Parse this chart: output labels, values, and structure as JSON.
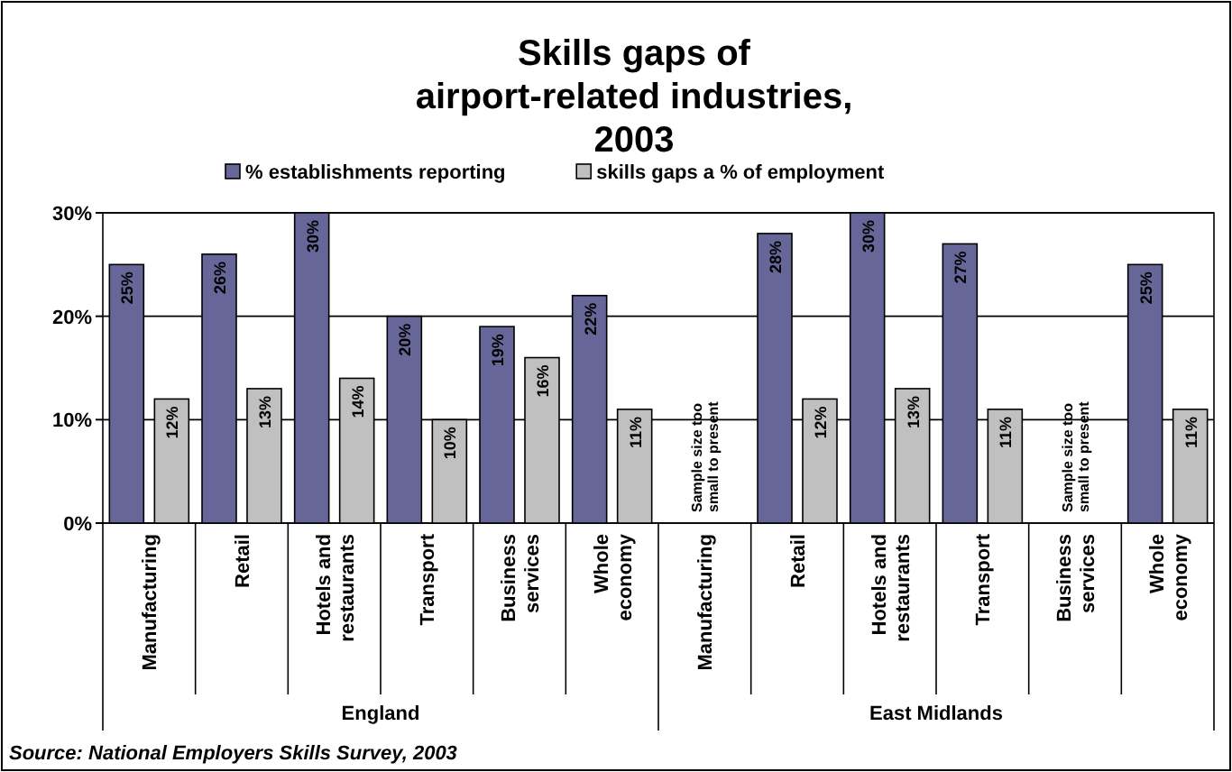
{
  "chart_data": {
    "type": "bar",
    "title": "Skills gaps of airport-related industries, 2003",
    "categories": [
      "Manufacturing",
      "Retail",
      "Hotels and restaurants",
      "Transport",
      "Business services",
      "Whole economy",
      "Manufacturing",
      "Retail",
      "Hotels and restaurants",
      "Transport",
      "Business services",
      "Whole economy"
    ],
    "series": [
      {
        "name": "% establishments reporting",
        "color": "#666699",
        "values": [
          25,
          26,
          30,
          20,
          19,
          22,
          null,
          28,
          30,
          27,
          null,
          25
        ],
        "value_labels": [
          "25%",
          "26%",
          "30%",
          "20%",
          "19%",
          "22%",
          null,
          "28%",
          "30%",
          "27%",
          null,
          "25%"
        ]
      },
      {
        "name": "skills gaps a % of employment",
        "color": "#c0c0c0",
        "values": [
          12,
          13,
          14,
          10,
          16,
          11,
          null,
          12,
          13,
          11,
          null,
          11
        ],
        "value_labels": [
          "12%",
          "13%",
          "14%",
          "10%",
          "16%",
          "11%",
          null,
          "12%",
          "13%",
          "11%",
          null,
          "11%"
        ]
      }
    ],
    "ylim": [
      0,
      30
    ],
    "yticks": [
      {
        "value": 0,
        "label": "0%"
      },
      {
        "value": 10,
        "label": "10%"
      },
      {
        "value": 20,
        "label": "20%"
      },
      {
        "value": 30,
        "label": "30%"
      }
    ],
    "grid": "y",
    "legend": "top",
    "annotations": [
      "Sample size too small to present",
      "Sample size too small to present",
      "England",
      "East Midlands",
      "Source: National Employers Skills Survey, 2003"
    ]
  }
}
